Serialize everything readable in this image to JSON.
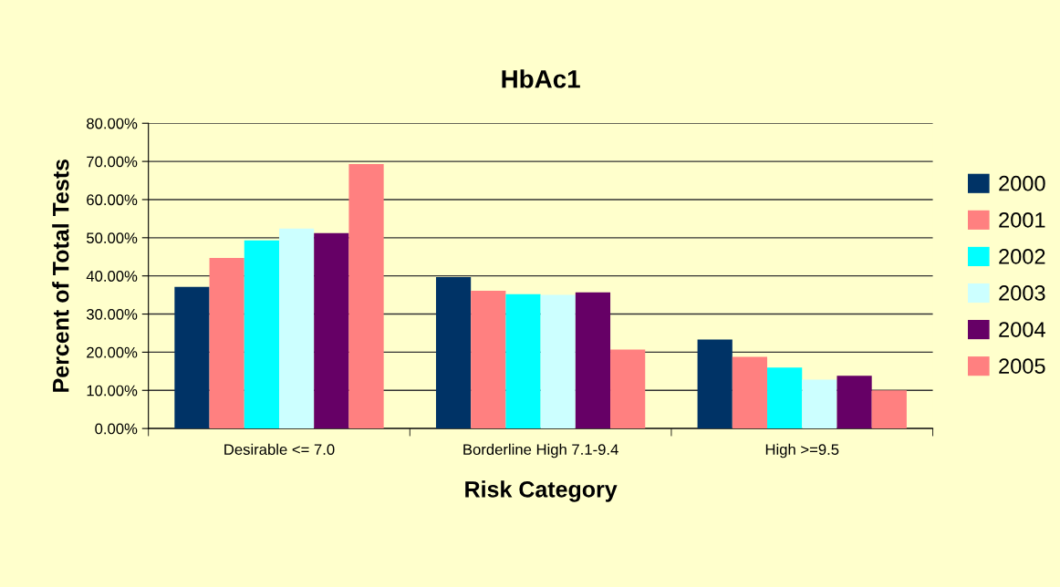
{
  "chart_data": {
    "type": "bar",
    "title": "HbAc1",
    "xlabel": "Risk Category",
    "ylabel": "Percent of Total Tests",
    "categories": [
      "Desirable <= 7.0",
      "Borderline High 7.1-9.4",
      "High >=9.5"
    ],
    "series": [
      {
        "name": "2000",
        "color": "#003366",
        "values": [
          37.1,
          39.7,
          23.3
        ]
      },
      {
        "name": "2001",
        "color": "#ff8080",
        "values": [
          44.7,
          36.1,
          18.8
        ]
      },
      {
        "name": "2002",
        "color": "#00ffff",
        "values": [
          49.3,
          35.2,
          16.0
        ]
      },
      {
        "name": "2003",
        "color": "#ccffff",
        "values": [
          52.4,
          35.0,
          12.8
        ]
      },
      {
        "name": "2004",
        "color": "#660066",
        "values": [
          51.2,
          35.7,
          13.8
        ]
      },
      {
        "name": "2005",
        "color": "#ff8080",
        "values": [
          69.3,
          20.7,
          10.0
        ]
      }
    ],
    "ylim": [
      0,
      80
    ],
    "yticks": [
      {
        "value": 0,
        "label": "0.00%"
      },
      {
        "value": 10,
        "label": "10.00%"
      },
      {
        "value": 20,
        "label": "20.00%"
      },
      {
        "value": 30,
        "label": "30.00%"
      },
      {
        "value": 40,
        "label": "40.00%"
      },
      {
        "value": 50,
        "label": "50.00%"
      },
      {
        "value": 60,
        "label": "60.00%"
      },
      {
        "value": 70,
        "label": "70.00%"
      },
      {
        "value": 80,
        "label": "80.00%"
      }
    ],
    "grid": "y",
    "legend": "right"
  }
}
